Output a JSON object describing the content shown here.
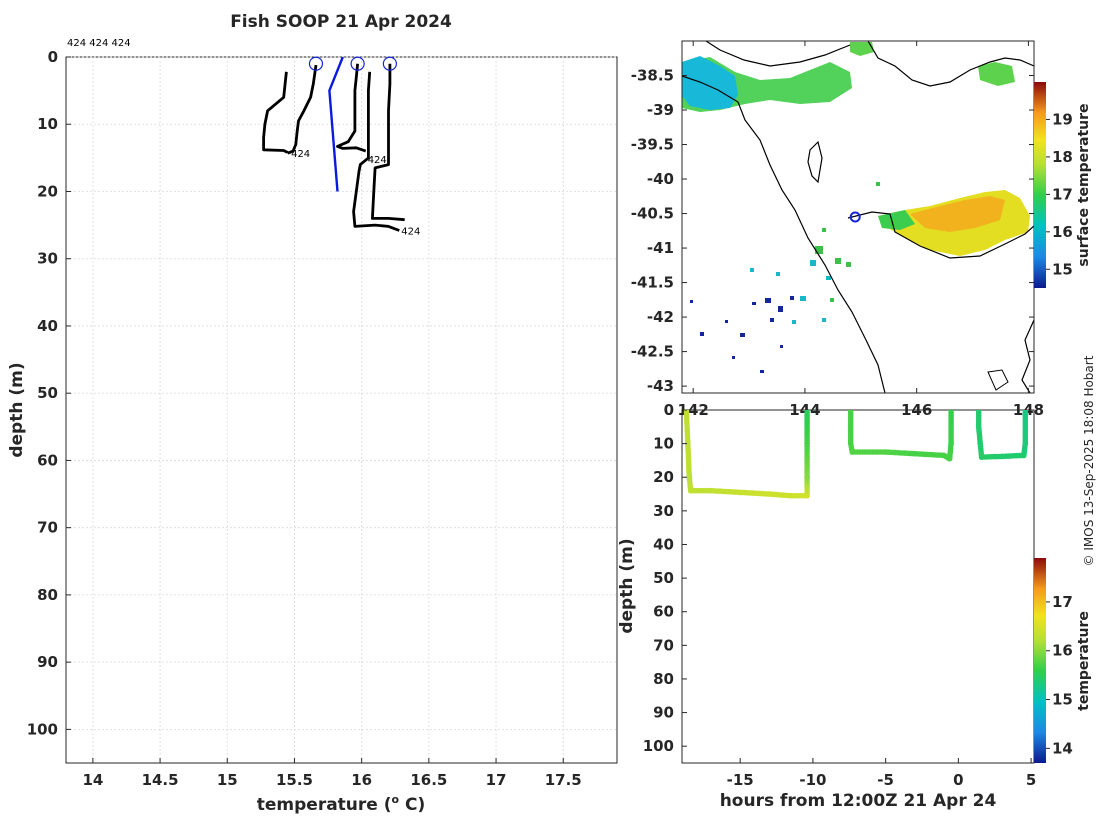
{
  "title": "Fish SOOP 21 Apr 2024",
  "credit": "© IMOS 13-Sep-2025 18:08 Hobart",
  "chart_data": [
    {
      "type": "line",
      "id": "profile",
      "title": "Fish SOOP 21 Apr 2024",
      "xlabel": "temperature (o C)",
      "xlabel_main": "temperature (",
      "xlabel_sup": "o",
      "xlabel_end": " C)",
      "ylabel": "depth (m)",
      "xlim": [
        13.8,
        17.9
      ],
      "ylim": [
        0,
        105
      ],
      "xticks": [
        14,
        14.5,
        15,
        15.5,
        16,
        16.5,
        17,
        17.5
      ],
      "yticks": [
        0,
        10,
        20,
        30,
        40,
        50,
        60,
        70,
        80,
        90,
        100
      ],
      "top_label": "424 424 424",
      "series": [
        {
          "name": "profile-1",
          "color": "#000000",
          "points": [
            [
              15.44,
              2.2
            ],
            [
              15.43,
              4
            ],
            [
              15.42,
              6
            ],
            [
              15.3,
              8
            ],
            [
              15.28,
              10
            ],
            [
              15.27,
              12
            ],
            [
              15.27,
              13.8
            ],
            [
              15.42,
              13.9
            ],
            [
              15.45,
              14.2
            ]
          ]
        },
        {
          "name": "profile-2",
          "color": "#000000",
          "points": [
            [
              15.66,
              1.2
            ],
            [
              15.64,
              4
            ],
            [
              15.62,
              6
            ],
            [
              15.57,
              8
            ],
            [
              15.53,
              9.5
            ],
            [
              15.52,
              11
            ],
            [
              15.51,
              13
            ],
            [
              15.49,
              14
            ],
            [
              15.45,
              14.3
            ]
          ]
        },
        {
          "name": "profile-3",
          "color": "#000000",
          "points": [
            [
              15.97,
              1
            ],
            [
              15.96,
              3
            ],
            [
              15.95,
              5
            ],
            [
              15.95,
              7
            ],
            [
              15.95,
              9
            ],
            [
              15.95,
              11
            ],
            [
              15.9,
              12.6
            ],
            [
              15.82,
              13.3
            ],
            [
              15.86,
              13.6
            ],
            [
              15.96,
              13.5
            ],
            [
              16.03,
              14
            ]
          ]
        },
        {
          "name": "profile-4",
          "color": "#000000",
          "points": [
            [
              16.06,
              2.2
            ],
            [
              16.05,
              5
            ],
            [
              16.05,
              10
            ],
            [
              16.05,
              15
            ],
            [
              15.99,
              16
            ],
            [
              15.98,
              17
            ],
            [
              15.96,
              20
            ],
            [
              15.94,
              23
            ],
            [
              15.95,
              25.2
            ],
            [
              16.1,
              25
            ],
            [
              16.2,
              25.2
            ],
            [
              16.28,
              25.8
            ]
          ]
        },
        {
          "name": "profile-5",
          "color": "#000000",
          "points": [
            [
              16.21,
              1
            ],
            [
              16.21,
              4
            ],
            [
              16.2,
              8
            ],
            [
              16.2,
              12
            ],
            [
              16.2,
              16
            ],
            [
              16.1,
              16.5
            ],
            [
              16.09,
              20
            ],
            [
              16.08,
              24
            ],
            [
              16.2,
              24
            ],
            [
              16.32,
              24.2
            ]
          ]
        },
        {
          "name": "reference",
          "color": "#0a1adf",
          "points": [
            [
              15.86,
              0
            ],
            [
              15.76,
              5
            ],
            [
              15.78,
              10
            ],
            [
              15.8,
              15
            ],
            [
              15.82,
              20
            ]
          ]
        }
      ],
      "markers": [
        {
          "x": 15.66,
          "y": 1
        },
        {
          "x": 15.97,
          "y": 1
        },
        {
          "x": 16.21,
          "y": 1
        }
      ],
      "annotations": [
        {
          "text": "424",
          "x": 15.46,
          "y": 14.3
        },
        {
          "text": "424",
          "x": 16.03,
          "y": 15.2
        },
        {
          "text": "424",
          "x": 16.28,
          "y": 25.8
        }
      ]
    },
    {
      "type": "heatmap",
      "id": "map",
      "title": "",
      "xlabel": "",
      "ylabel": "",
      "xlim": [
        141.8,
        148.1
      ],
      "ylim": [
        -43.1,
        -38.0
      ],
      "xticks": [
        142,
        144,
        146,
        148
      ],
      "xtick_labels": [
        "142",
        "144",
        "146",
        "148"
      ],
      "yticks": [
        -38.5,
        -39,
        -39.5,
        -40,
        -40.5,
        -41,
        -41.5,
        -42,
        -42.5,
        -43
      ],
      "colorbar": {
        "label": "surface temperature",
        "range": [
          14.5,
          20
        ],
        "ticks": [
          15,
          16,
          17,
          18,
          19
        ]
      },
      "vessel_position": {
        "lon": 144.9,
        "lat": -40.55
      }
    },
    {
      "type": "scatter",
      "id": "section",
      "title": "",
      "xlabel": "hours from 12:00Z 21 Apr 24",
      "ylabel": "depth (m)",
      "xlim": [
        -19,
        5.2
      ],
      "ylim": [
        0,
        105
      ],
      "xticks": [
        -15,
        -10,
        -5,
        0,
        5
      ],
      "yticks": [
        0,
        10,
        20,
        30,
        40,
        50,
        60,
        70,
        80,
        90,
        100
      ],
      "colorbar": {
        "label": "temperature",
        "range": [
          13.7,
          17.9
        ],
        "ticks": [
          14,
          15,
          16,
          17
        ]
      },
      "series": [
        {
          "name": "tow-1",
          "points": [
            [
              -18.7,
              0,
              16.3
            ],
            [
              -18.6,
              10,
              16.3
            ],
            [
              -18.5,
              20,
              16.25
            ],
            [
              -18.4,
              24,
              16.3
            ],
            [
              -17,
              24,
              16.3
            ],
            [
              -15,
              24.5,
              16.35
            ],
            [
              -13,
              25,
              16.4
            ],
            [
              -11.5,
              25.5,
              16.4
            ],
            [
              -10.4,
              25.5,
              16.45
            ],
            [
              -10.4,
              20,
              16.0
            ],
            [
              -10.4,
              10,
              15.7
            ],
            [
              -10.4,
              0,
              15.5
            ]
          ]
        },
        {
          "name": "tow-2",
          "points": [
            [
              -7.4,
              0,
              15.7
            ],
            [
              -7.4,
              5,
              15.7
            ],
            [
              -7.4,
              10,
              15.7
            ],
            [
              -7.3,
              12.5,
              15.75
            ],
            [
              -5,
              12.5,
              15.75
            ],
            [
              -3,
              13,
              15.7
            ],
            [
              -1,
              13.5,
              15.7
            ],
            [
              -0.6,
              14.5,
              15.7
            ],
            [
              -0.5,
              10,
              15.65
            ],
            [
              -0.5,
              0,
              15.6
            ]
          ]
        },
        {
          "name": "tow-3",
          "points": [
            [
              1.4,
              0,
              15.4
            ],
            [
              1.4,
              5,
              15.4
            ],
            [
              1.5,
              10,
              15.4
            ],
            [
              1.6,
              14,
              15.45
            ],
            [
              3,
              13.8,
              15.4
            ],
            [
              4.5,
              13.5,
              15.4
            ],
            [
              4.6,
              10,
              15.35
            ],
            [
              4.6,
              0,
              15.3
            ]
          ]
        }
      ]
    }
  ]
}
